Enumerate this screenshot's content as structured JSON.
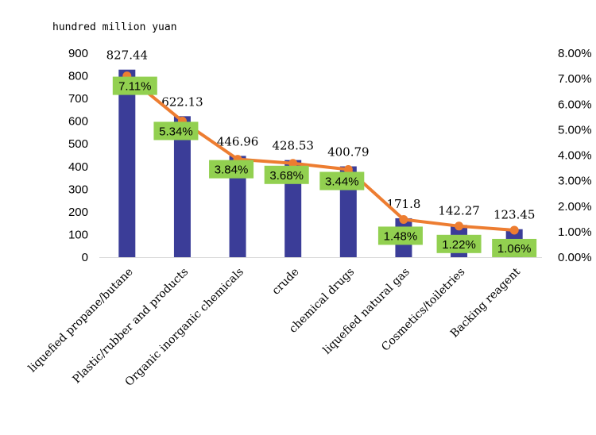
{
  "chart_data": {
    "type": "bar",
    "unit_label": "hundred million yuan",
    "categories": [
      "liquefied propane/butane",
      "Plastic/rubber and products",
      "Organic inorganic chemicals",
      "crude",
      "chemical drugs",
      "liquefied natural gas",
      "Cosmetics/toiletries",
      "Backing reagent"
    ],
    "series": [
      {
        "type": "bar",
        "axis": "left",
        "values": [
          827.44,
          622.13,
          446.96,
          428.53,
          400.79,
          171.8,
          142.27,
          123.45
        ],
        "value_labels": [
          "827.44",
          "622.13",
          "446.96",
          "428.53",
          "400.79",
          "171.8",
          "142.27",
          "123.45"
        ],
        "color": "#3b3d98"
      },
      {
        "type": "line",
        "axis": "right",
        "values": [
          7.11,
          5.34,
          3.84,
          3.68,
          3.44,
          1.48,
          1.22,
          1.06
        ],
        "value_labels": [
          "7.11%",
          "5.34%",
          "3.84%",
          "3.68%",
          "3.44%",
          "1.48%",
          "1.22%",
          "1.06%"
        ],
        "color": "#ed7d31",
        "label_box_color": "#92d050"
      }
    ],
    "left_axis": {
      "min": 0,
      "max": 900,
      "step": 100,
      "ticks": [
        "0",
        "100",
        "200",
        "300",
        "400",
        "500",
        "600",
        "700",
        "800",
        "900"
      ]
    },
    "right_axis": {
      "min": 0,
      "max": 8,
      "step": 1,
      "ticks": [
        "0.00%",
        "1.00%",
        "2.00%",
        "3.00%",
        "4.00%",
        "5.00%",
        "6.00%",
        "7.00%",
        "8.00%"
      ]
    },
    "grid": false
  }
}
